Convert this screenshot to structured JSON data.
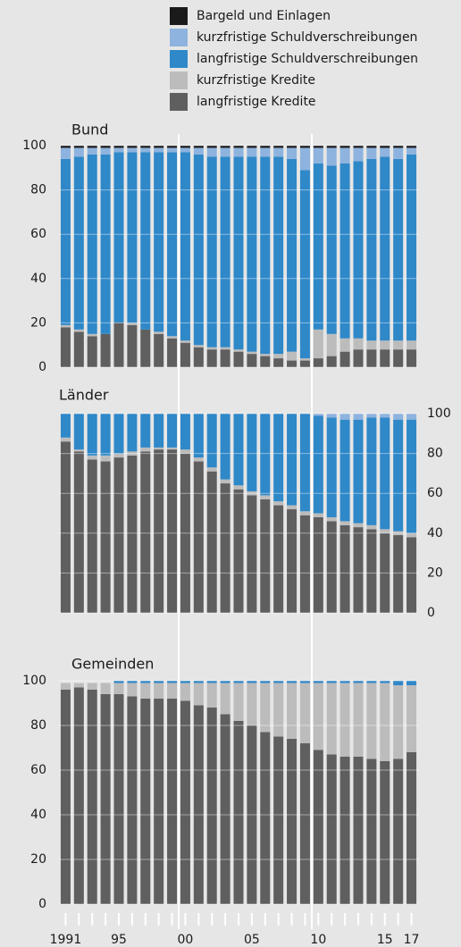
{
  "chart_data": [
    {
      "type": "bar",
      "stacked": true,
      "title": "Bund",
      "y_axis_position": "left",
      "ylim": [
        0,
        100
      ],
      "yticks": [
        0,
        20,
        40,
        60,
        80,
        100
      ],
      "grid": true,
      "series": [
        {
          "name": "langfristige Kredite",
          "color": "#5f5f5f",
          "values": [
            18,
            16,
            14,
            15,
            20,
            19,
            17,
            15,
            13,
            11,
            9,
            8,
            8,
            7,
            6,
            5,
            4,
            3,
            3,
            4,
            5,
            7,
            8,
            8,
            8,
            8,
            8
          ]
        },
        {
          "name": "kurzfristige Kredite",
          "color": "#bcbcbc",
          "values": [
            1,
            1,
            1,
            0,
            0,
            1,
            0,
            1,
            1,
            1,
            1,
            1,
            1,
            1,
            1,
            1,
            2,
            4,
            1,
            13,
            10,
            6,
            5,
            4,
            4,
            4,
            4
          ]
        },
        {
          "name": "langfristige Schuldverschreibungen",
          "color": "#2f88c8",
          "values": [
            75,
            78,
            81,
            81,
            77,
            77,
            80,
            81,
            83,
            85,
            86,
            86,
            86,
            87,
            88,
            89,
            89,
            87,
            85,
            75,
            76,
            79,
            80,
            82,
            83,
            82,
            84
          ]
        },
        {
          "name": "kurzfristige Schuldverschreibungen",
          "color": "#8eb3de",
          "values": [
            5,
            4,
            3,
            3,
            2,
            2,
            2,
            2,
            2,
            2,
            3,
            4,
            4,
            4,
            4,
            4,
            4,
            5,
            10,
            7,
            8,
            7,
            6,
            5,
            4,
            5,
            3
          ]
        },
        {
          "name": "Bargeld und Einlagen",
          "color": "#1a1a1a",
          "values": [
            1,
            1,
            1,
            1,
            1,
            1,
            1,
            1,
            1,
            1,
            1,
            1,
            1,
            1,
            1,
            1,
            1,
            1,
            1,
            1,
            1,
            1,
            1,
            1,
            1,
            1,
            1
          ]
        }
      ]
    },
    {
      "type": "bar",
      "stacked": true,
      "title": "Länder",
      "y_axis_position": "right",
      "ylim": [
        0,
        100
      ],
      "yticks": [
        0,
        20,
        40,
        60,
        80,
        100
      ],
      "grid": true,
      "series": [
        {
          "name": "langfristige Kredite",
          "color": "#5f5f5f",
          "values": [
            86,
            81,
            77,
            76,
            78,
            79,
            81,
            82,
            82,
            80,
            76,
            71,
            65,
            62,
            59,
            57,
            54,
            52,
            49,
            48,
            46,
            44,
            43,
            42,
            40,
            39,
            38
          ]
        },
        {
          "name": "kurzfristige Kredite",
          "color": "#bcbcbc",
          "values": [
            2,
            1,
            2,
            3,
            2,
            2,
            2,
            1,
            1,
            2,
            2,
            2,
            2,
            2,
            2,
            2,
            2,
            2,
            2,
            2,
            2,
            2,
            2,
            2,
            2,
            2,
            2
          ]
        },
        {
          "name": "langfristige Schuldverschreibungen",
          "color": "#2f88c8",
          "values": [
            12,
            18,
            21,
            21,
            20,
            19,
            17,
            17,
            17,
            18,
            22,
            27,
            33,
            36,
            39,
            41,
            44,
            46,
            49,
            49,
            50,
            51,
            52,
            54,
            56,
            56,
            57
          ]
        },
        {
          "name": "kurzfristige Schuldverschreibungen",
          "color": "#8eb3de",
          "values": [
            0,
            0,
            0,
            0,
            0,
            0,
            0,
            0,
            0,
            0,
            0,
            0,
            0,
            0,
            0,
            0,
            0,
            0,
            0,
            1,
            2,
            3,
            3,
            2,
            2,
            3,
            3
          ]
        },
        {
          "name": "Bargeld und Einlagen",
          "color": "#1a1a1a",
          "values": [
            0,
            0,
            0,
            0,
            0,
            0,
            0,
            0,
            0,
            0,
            0,
            0,
            0,
            0,
            0,
            0,
            0,
            0,
            0,
            0,
            0,
            0,
            0,
            0,
            0,
            0,
            0
          ]
        }
      ]
    },
    {
      "type": "bar",
      "stacked": true,
      "title": "Gemeinden",
      "y_axis_position": "left",
      "ylim": [
        0,
        100
      ],
      "yticks": [
        0,
        20,
        40,
        60,
        80,
        100
      ],
      "grid": true,
      "categories": [
        "1991",
        null,
        null,
        null,
        "95",
        null,
        null,
        null,
        null,
        "00",
        null,
        null,
        null,
        null,
        "05",
        null,
        null,
        null,
        null,
        "10",
        null,
        null,
        null,
        null,
        "15",
        null,
        "17"
      ],
      "series": [
        {
          "name": "langfristige Kredite",
          "color": "#5f5f5f",
          "values": [
            96,
            97,
            96,
            94,
            94,
            93,
            92,
            92,
            92,
            91,
            89,
            88,
            85,
            82,
            80,
            77,
            75,
            74,
            72,
            69,
            67,
            66,
            66,
            65,
            64,
            65,
            68
          ]
        },
        {
          "name": "kurzfristige Kredite",
          "color": "#bcbcbc",
          "values": [
            3,
            2,
            3,
            5,
            5,
            6,
            7,
            7,
            7,
            8,
            10,
            11,
            14,
            17,
            19,
            22,
            24,
            25,
            27,
            30,
            32,
            33,
            33,
            34,
            35,
            33,
            30
          ]
        },
        {
          "name": "langfristige Schuldverschreibungen",
          "color": "#2f88c8",
          "values": [
            0,
            0,
            0,
            0,
            1,
            1,
            1,
            1,
            1,
            1,
            1,
            1,
            1,
            1,
            1,
            1,
            1,
            1,
            1,
            1,
            1,
            1,
            1,
            1,
            1,
            2,
            2
          ]
        },
        {
          "name": "kurzfristige Schuldverschreibungen",
          "color": "#8eb3de",
          "values": [
            0,
            0,
            0,
            0,
            0,
            0,
            0,
            0,
            0,
            0,
            0,
            0,
            0,
            0,
            0,
            0,
            0,
            0,
            0,
            0,
            0,
            0,
            0,
            0,
            0,
            0,
            0
          ]
        },
        {
          "name": "Bargeld und Einlagen",
          "color": "#1a1a1a",
          "values": [
            0,
            0,
            0,
            0,
            0,
            0,
            0,
            0,
            0,
            0,
            0,
            0,
            0,
            0,
            0,
            0,
            0,
            0,
            0,
            0,
            0,
            0,
            0,
            0,
            0,
            0,
            0
          ]
        }
      ]
    }
  ]
}
